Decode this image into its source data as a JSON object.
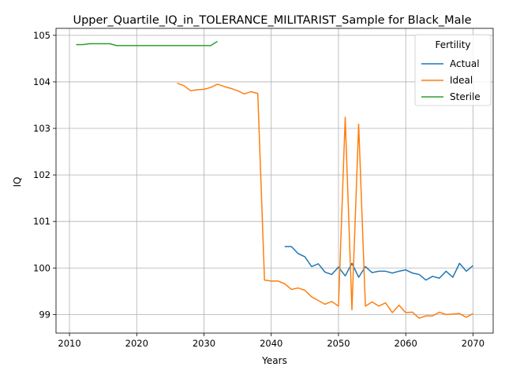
{
  "chart_data": {
    "type": "line",
    "title": "Upper_Quartile_IQ_in_TOLERANCE_MILITARIST_Sample for Black_Male",
    "xlabel": "Years",
    "ylabel": "IQ",
    "xlim": [
      2008,
      2073
    ],
    "ylim": [
      98.6,
      105.15
    ],
    "xticks": [
      2010,
      2020,
      2030,
      2040,
      2050,
      2060,
      2070
    ],
    "yticks": [
      99,
      100,
      101,
      102,
      103,
      104,
      105
    ],
    "grid": true,
    "legend": {
      "title": "Fertility",
      "placement": "top-right"
    },
    "series": [
      {
        "name": "Actual",
        "color": "#1f77b4",
        "x": [
          2042,
          2043,
          2044,
          2045,
          2046,
          2047,
          2048,
          2049,
          2050,
          2051,
          2052,
          2053,
          2054,
          2055,
          2056,
          2057,
          2058,
          2059,
          2060,
          2061,
          2062,
          2063,
          2064,
          2065,
          2066,
          2067,
          2068,
          2069,
          2070
        ],
        "y": [
          100.46,
          100.46,
          100.31,
          100.24,
          100.03,
          100.09,
          99.91,
          99.86,
          100.02,
          99.83,
          100.1,
          99.8,
          100.03,
          99.9,
          99.93,
          99.93,
          99.89,
          99.93,
          99.96,
          99.89,
          99.86,
          99.74,
          99.82,
          99.78,
          99.93,
          99.8,
          100.1,
          99.93,
          100.05
        ]
      },
      {
        "name": "Ideal",
        "color": "#ff7f0e",
        "x": [
          2026,
          2027,
          2028,
          2029,
          2030,
          2031,
          2032,
          2033,
          2034,
          2035,
          2036,
          2037,
          2038,
          2039,
          2040,
          2041,
          2042,
          2043,
          2044,
          2045,
          2046,
          2047,
          2048,
          2049,
          2050,
          2051,
          2052,
          2053,
          2054,
          2055,
          2056,
          2057,
          2058,
          2059,
          2060,
          2061,
          2062,
          2063,
          2064,
          2065,
          2066,
          2067,
          2068,
          2069,
          2070
        ],
        "y": [
          103.97,
          103.92,
          103.81,
          103.83,
          103.84,
          103.88,
          103.95,
          103.9,
          103.86,
          103.81,
          103.74,
          103.79,
          103.75,
          99.74,
          99.72,
          99.72,
          99.66,
          99.54,
          99.57,
          99.52,
          99.38,
          99.3,
          99.22,
          99.28,
          99.18,
          103.24,
          99.1,
          103.09,
          99.18,
          99.27,
          99.18,
          99.25,
          99.04,
          99.2,
          99.04,
          99.05,
          98.92,
          98.97,
          98.97,
          99.05,
          99.0,
          99.01,
          99.02,
          98.94,
          99.02
        ]
      },
      {
        "name": "Sterile",
        "color": "#2ca02c",
        "x": [
          2011,
          2012,
          2013,
          2014,
          2015,
          2016,
          2017,
          2018,
          2019,
          2020,
          2021,
          2022,
          2023,
          2024,
          2025,
          2026,
          2027,
          2028,
          2029,
          2030,
          2031,
          2032
        ],
        "y": [
          104.8,
          104.8,
          104.82,
          104.82,
          104.82,
          104.82,
          104.78,
          104.78,
          104.78,
          104.78,
          104.78,
          104.78,
          104.78,
          104.78,
          104.78,
          104.78,
          104.78,
          104.78,
          104.78,
          104.78,
          104.78,
          104.87
        ]
      }
    ]
  }
}
